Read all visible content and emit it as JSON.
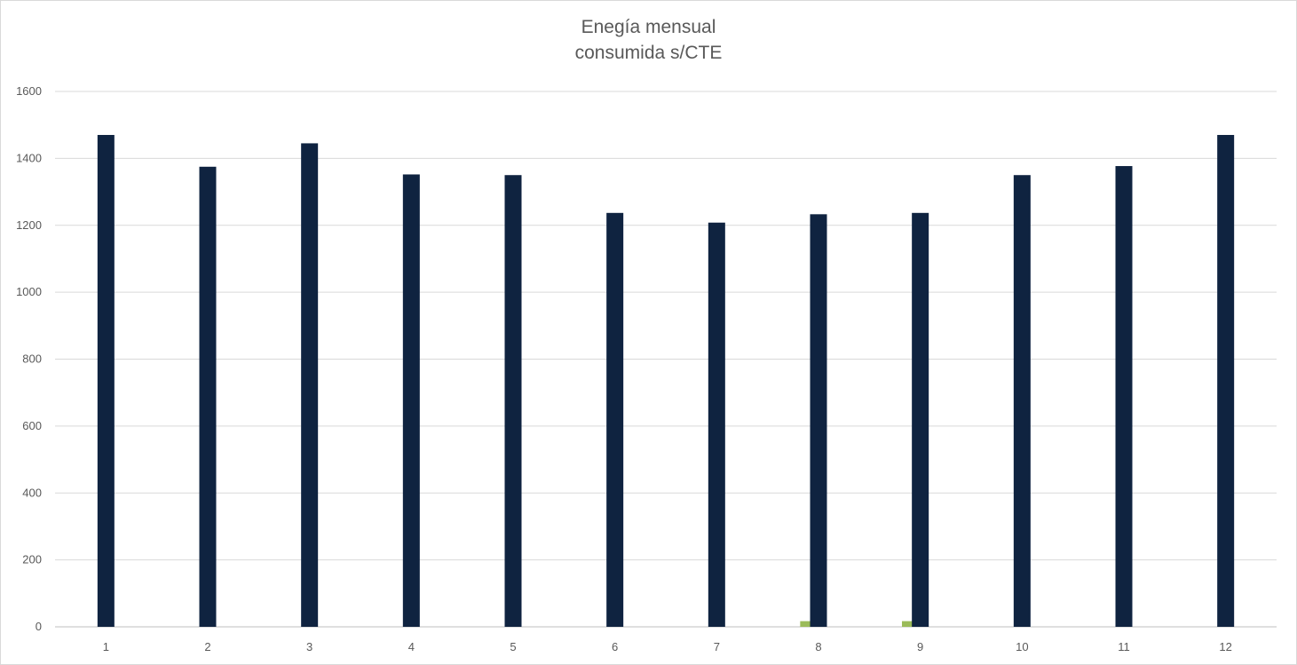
{
  "chart_data": {
    "type": "bar",
    "title_lines": [
      "Enegía mensual",
      "consumida s/CTE"
    ],
    "xlabel": "",
    "ylabel": "",
    "categories": [
      "1",
      "2",
      "3",
      "4",
      "5",
      "6",
      "7",
      "8",
      "9",
      "10",
      "11",
      "12"
    ],
    "series": [
      {
        "color": "#0f2340",
        "values": [
          1470,
          1375,
          1445,
          1352,
          1350,
          1237,
          1208,
          1233,
          1237,
          1350,
          1377,
          1470
        ]
      },
      {
        "color": "#9bbb59",
        "values": [
          0,
          0,
          0,
          0,
          0,
          0,
          17,
          17,
          0,
          0,
          0,
          0
        ]
      }
    ],
    "ylim": [
      0,
      1600
    ],
    "yticks": [
      0,
      200,
      400,
      600,
      800,
      1000,
      1200,
      1400,
      1600
    ],
    "grid": true,
    "legend": "none"
  }
}
